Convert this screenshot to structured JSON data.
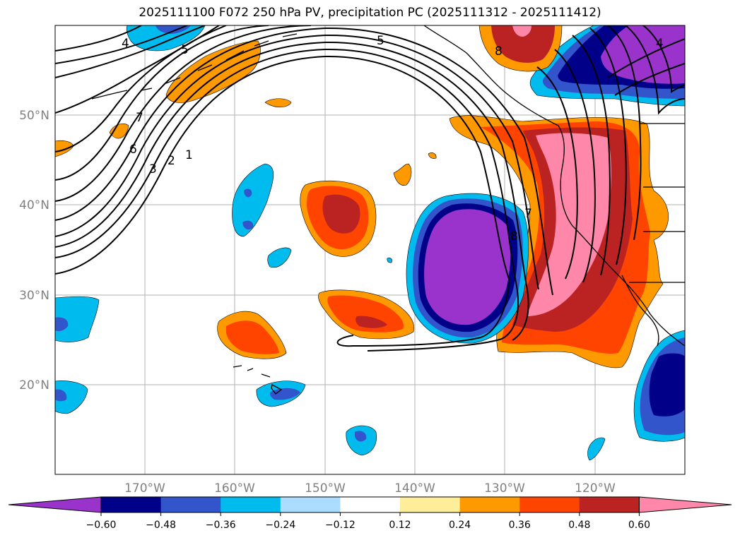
{
  "title": "2025111100 F072 250 hPa PV, precipitation PC (2025111312 - 2025111412)",
  "map": {
    "lat_labels": [
      "50°N",
      "40°N",
      "30°N",
      "20°N"
    ],
    "lon_labels": [
      "170°W",
      "160°W",
      "150°W",
      "140°W",
      "130°W",
      "120°W"
    ],
    "contour_labels": [
      "4",
      "5",
      "5",
      "8",
      "4",
      "7",
      "6",
      "3",
      "2",
      "1",
      "8",
      "7"
    ]
  },
  "colorbar": {
    "labels": [
      "−0.60",
      "−0.48",
      "−0.36",
      "−0.24",
      "−0.12",
      "0.12",
      "0.24",
      "0.36",
      "0.48",
      "0.60"
    ],
    "colors": [
      "#9933cc",
      "#000088",
      "#3355cc",
      "#00bbee",
      "#aaddff",
      "#ffffff",
      "#ffee99",
      "#ff9900",
      "#ff4400",
      "#bb2222",
      "#ff88aa"
    ]
  }
}
